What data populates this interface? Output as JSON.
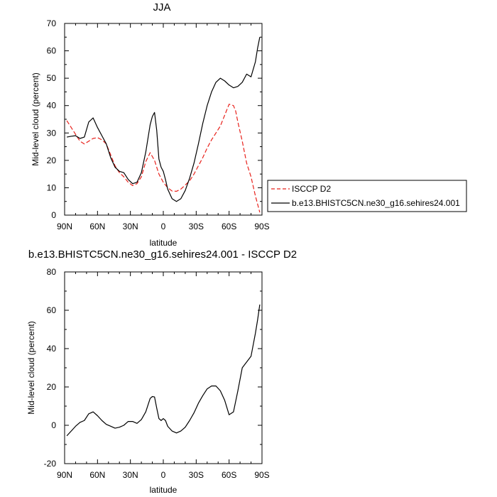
{
  "chart_data": [
    {
      "type": "line",
      "title": "JJA",
      "xlabel": "latitude",
      "ylabel": "Mid-level cloud (percent)",
      "xlim": [
        90,
        -90
      ],
      "ylim": [
        0,
        70
      ],
      "x_ticks": [
        90,
        60,
        30,
        0,
        -30,
        -60,
        -90
      ],
      "x_tick_labels": [
        "90N",
        "60N",
        "30N",
        "0",
        "30S",
        "60S",
        "90S"
      ],
      "y_ticks": [
        0,
        10,
        20,
        30,
        40,
        50,
        60,
        70
      ],
      "y_tick_labels": [
        "0",
        "10",
        "20",
        "30",
        "40",
        "50",
        "60",
        "70"
      ],
      "legend_position": "right, outside plot",
      "series": [
        {
          "name": "ISCCP D2",
          "color": "#e8211b",
          "dash": "dashed",
          "x": [
            88,
            84,
            80,
            76,
            72,
            68,
            64,
            60,
            56,
            52,
            48,
            44,
            40,
            36,
            32,
            28,
            24,
            20,
            16,
            12,
            8,
            4,
            0,
            -4,
            -8,
            -12,
            -16,
            -20,
            -24,
            -28,
            -32,
            -36,
            -40,
            -44,
            -48,
            -52,
            -56,
            -60,
            -64,
            -66,
            -68,
            -72,
            -76,
            -80,
            -84,
            -88
          ],
          "values": [
            34.5,
            32,
            29.5,
            27,
            26,
            27,
            28,
            28.3,
            27.5,
            26,
            22,
            18,
            15.5,
            14,
            12,
            10.8,
            11.5,
            14,
            19.5,
            22.8,
            20,
            15,
            12,
            10,
            8.8,
            8.7,
            9.5,
            11,
            12.5,
            15,
            18,
            21,
            24.5,
            27.5,
            30,
            32.5,
            36.5,
            40.5,
            40,
            38,
            34,
            27,
            19,
            14,
            7,
            1
          ]
        },
        {
          "name": "b.e13.BHISTC5CN.ne30_g16.sehires24.001",
          "color": "#000000",
          "dash": "solid",
          "x": [
            88,
            84,
            80,
            76,
            72,
            68,
            64,
            60,
            56,
            52,
            48,
            44,
            40,
            36,
            32,
            28,
            24,
            20,
            16,
            12,
            10,
            8,
            6,
            4,
            2,
            0,
            -2,
            -4,
            -8,
            -12,
            -16,
            -20,
            -24,
            -28,
            -32,
            -36,
            -40,
            -44,
            -48,
            -52,
            -56,
            -60,
            -64,
            -68,
            -72,
            -76,
            -80,
            -84,
            -86,
            -88
          ],
          "values": [
            28.5,
            28.8,
            29,
            28,
            28.5,
            34,
            35.5,
            32,
            29,
            26,
            21,
            17.5,
            16,
            15.5,
            13,
            11.5,
            12,
            15.5,
            23,
            33,
            36,
            37.5,
            31,
            20.5,
            17.5,
            16,
            13,
            9.5,
            6,
            5,
            6,
            9,
            13.5,
            19,
            26,
            33.5,
            40,
            45,
            48.5,
            50,
            49,
            47.5,
            46.5,
            47,
            48.5,
            51.5,
            50.5,
            56,
            61,
            65
          ]
        }
      ]
    },
    {
      "type": "line",
      "title": "b.e13.BHISTC5CN.ne30_g16.sehires24.001 - ISCCP D2",
      "xlabel": "latitude",
      "ylabel": "Mid-level cloud (percent)",
      "xlim": [
        90,
        -90
      ],
      "ylim": [
        -20,
        80
      ],
      "x_ticks": [
        90,
        60,
        30,
        0,
        -30,
        -60,
        -90
      ],
      "x_tick_labels": [
        "90N",
        "60N",
        "30N",
        "0",
        "30S",
        "60S",
        "90S"
      ],
      "y_ticks": [
        -20,
        0,
        20,
        40,
        60,
        80
      ],
      "y_tick_labels": [
        "-20",
        "0",
        "20",
        "40",
        "60",
        "80"
      ],
      "series": [
        {
          "color": "#000000",
          "dash": "solid",
          "x": [
            88,
            84,
            80,
            76,
            72,
            68,
            64,
            60,
            56,
            52,
            48,
            44,
            40,
            36,
            32,
            28,
            24,
            20,
            16,
            12,
            10,
            8,
            6,
            4,
            2,
            0,
            -2,
            -4,
            -8,
            -12,
            -16,
            -20,
            -24,
            -28,
            -32,
            -36,
            -40,
            -44,
            -48,
            -52,
            -56,
            -60,
            -64,
            -68,
            -72,
            -76,
            -80,
            -84,
            -86,
            -88
          ],
          "values": [
            -5.5,
            -3,
            -0.5,
            1.5,
            2.5,
            6,
            7,
            5,
            2.5,
            0.5,
            -0.5,
            -1.5,
            -1,
            0,
            2,
            2,
            1,
            3,
            7,
            14,
            15,
            14.8,
            9,
            3.5,
            2.5,
            3.5,
            2.5,
            -0.5,
            -3,
            -4,
            -3,
            -1,
            2.5,
            6.5,
            11.5,
            15.5,
            19,
            20.5,
            20.5,
            18,
            13,
            5.5,
            7,
            18,
            30,
            33,
            36,
            48,
            55,
            63
          ]
        }
      ]
    }
  ]
}
